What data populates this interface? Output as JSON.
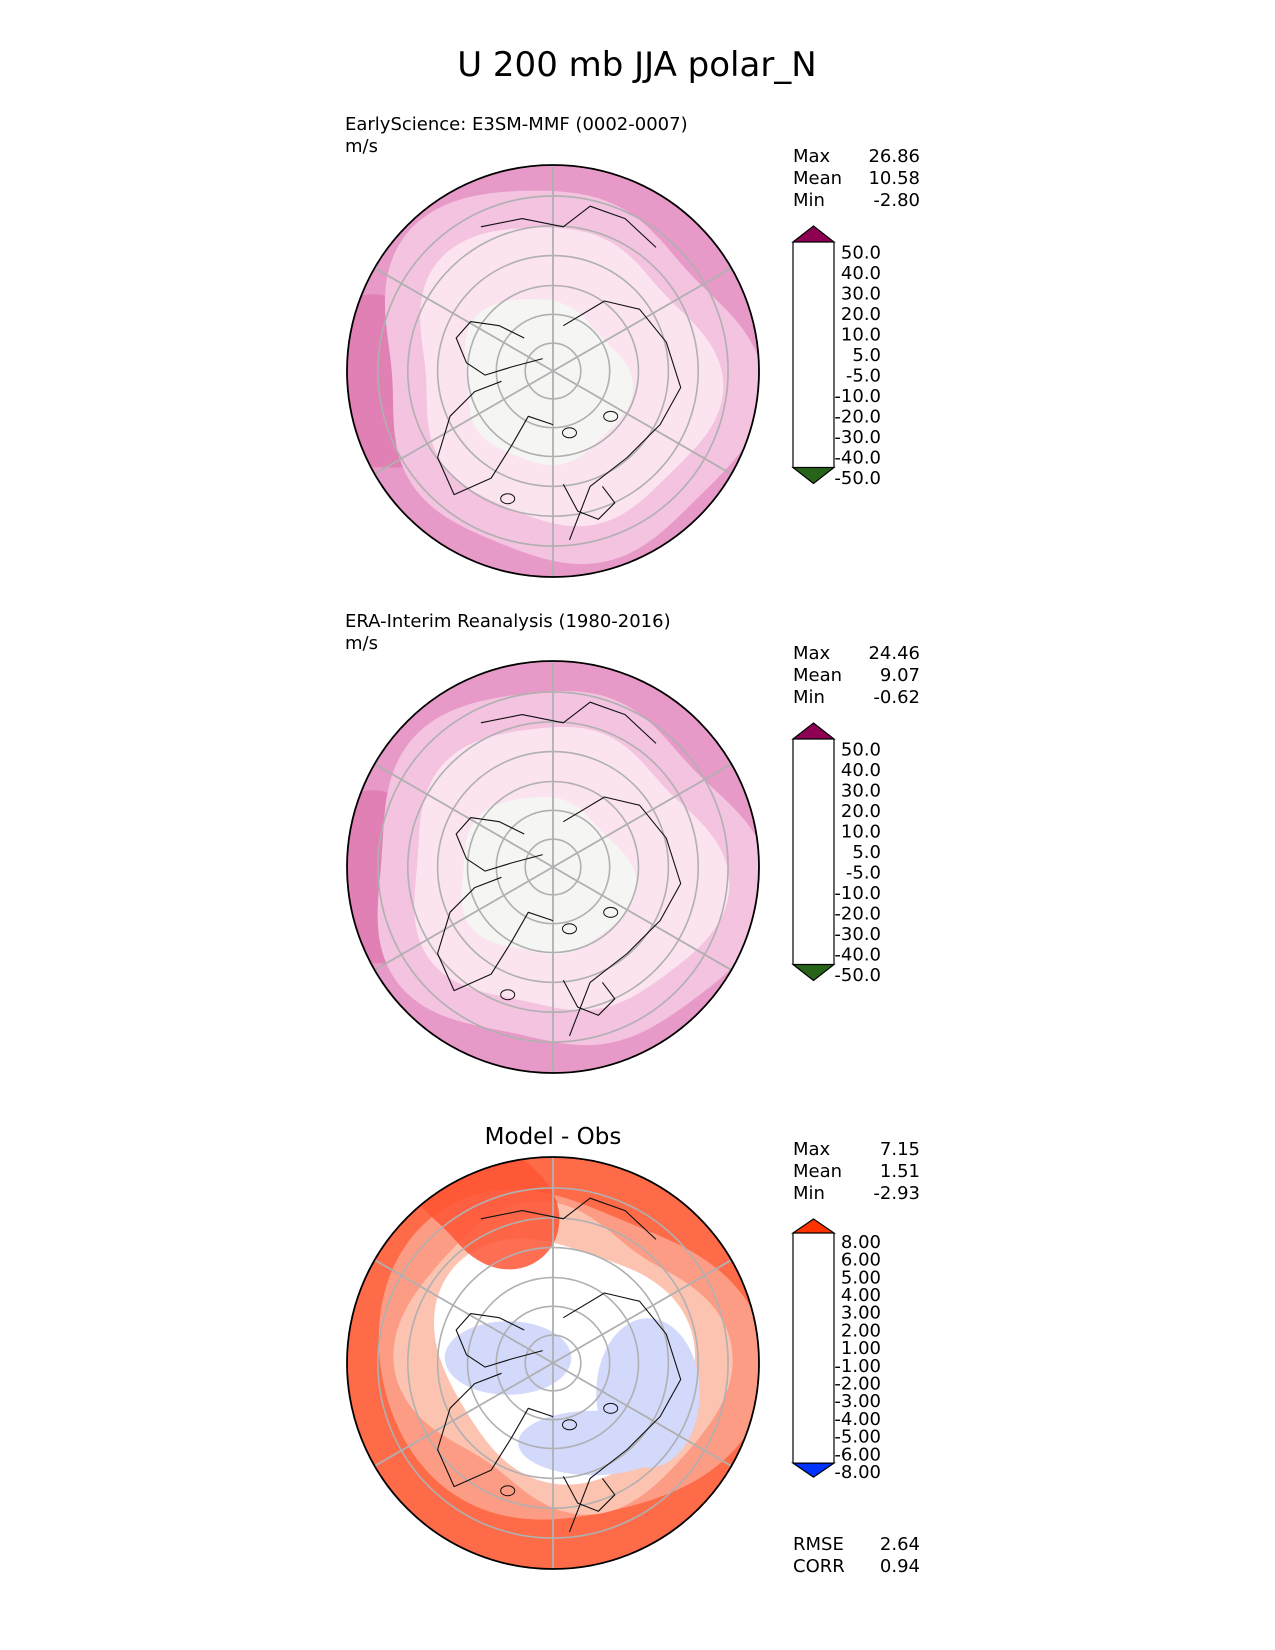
{
  "figure_title": "U 200 mb JJA polar_N",
  "chart_data": [
    {
      "type": "heatmap",
      "projection": "north-polar-stereographic",
      "title": "EarlyScience: E3SM-MMF (0002-0007)",
      "units": "m/s",
      "stats": [
        {
          "label": "Max",
          "value": "26.86"
        },
        {
          "label": "Mean",
          "value": "10.58"
        },
        {
          "label": "Min",
          "value": "-2.80"
        }
      ],
      "colorbar": {
        "labels": [
          "50.0",
          "40.0",
          "30.0",
          "20.0",
          "10.0",
          "5.0",
          "-5.0",
          "-10.0",
          "-20.0",
          "-30.0",
          "-40.0",
          "-50.0"
        ],
        "colors": [
          "#8e0152",
          "#c51b7d",
          "#de77ae",
          "#f1b6da",
          "#fde0ef",
          "#f7f7f7",
          "#e6f5d0",
          "#b8e186",
          "#7fbc41",
          "#4d9221",
          "#276419"
        ],
        "extend_top_color": "#8e0152",
        "extend_bottom_color": "#276419",
        "upper_colors": [
          "#8e0152",
          "#c51b7d",
          "#de77ae",
          "#f1b6da",
          "#fde0ef"
        ],
        "lower_colors": [
          "#e6f5d0",
          "#b8e186",
          "#7fbc41",
          "#4d9221",
          "#276419"
        ]
      },
      "field": {
        "rings": [
          {
            "value": 22,
            "color": "#e79ac8"
          },
          {
            "value": 15,
            "color": "#f3c3df"
          },
          {
            "value": 8,
            "color": "#fbe3ef"
          },
          {
            "value": 3,
            "color": "#f5f5f3"
          }
        ]
      }
    },
    {
      "type": "heatmap",
      "projection": "north-polar-stereographic",
      "title": "ERA-Interim Reanalysis (1980-2016)",
      "units": "m/s",
      "stats": [
        {
          "label": "Max",
          "value": "24.46"
        },
        {
          "label": "Mean",
          "value": "9.07"
        },
        {
          "label": "Min",
          "value": "-0.62"
        }
      ],
      "colorbar": {
        "labels": [
          "50.0",
          "40.0",
          "30.0",
          "20.0",
          "10.0",
          "5.0",
          "-5.0",
          "-10.0",
          "-20.0",
          "-30.0",
          "-40.0",
          "-50.0"
        ],
        "colors": [
          "#8e0152",
          "#c51b7d",
          "#de77ae",
          "#f1b6da",
          "#fde0ef",
          "#f7f7f7",
          "#e6f5d0",
          "#b8e186",
          "#7fbc41",
          "#4d9221",
          "#276419"
        ],
        "extend_top_color": "#8e0152",
        "extend_bottom_color": "#276419"
      },
      "field": {
        "rings": [
          {
            "value": 20,
            "color": "#e79ac8"
          },
          {
            "value": 13,
            "color": "#f3c3df"
          },
          {
            "value": 7,
            "color": "#fbe3ef"
          },
          {
            "value": 2,
            "color": "#f5f5f3"
          }
        ]
      }
    },
    {
      "type": "heatmap",
      "projection": "north-polar-stereographic",
      "title": "Model - Obs",
      "units": "",
      "stats": [
        {
          "label": "Max",
          "value": "7.15"
        },
        {
          "label": "Mean",
          "value": "1.51"
        },
        {
          "label": "Min",
          "value": "-2.93"
        }
      ],
      "extra_stats": [
        {
          "label": "RMSE",
          "value": "2.64"
        },
        {
          "label": "CORR",
          "value": "0.94"
        }
      ],
      "colorbar": {
        "labels": [
          "8.00",
          "6.00",
          "5.00",
          "4.00",
          "3.00",
          "2.00",
          "1.00",
          "-1.00",
          "-2.00",
          "-3.00",
          "-4.00",
          "-5.00",
          "-6.00",
          "-8.00"
        ],
        "colors": [
          "#fe2d10",
          "#fe5535",
          "#fe7d62",
          "#fd9c85",
          "#fdbaa6",
          "#fdd7cb",
          "#ffffff",
          "#dbe0fc",
          "#b7c3fa",
          "#96a6f8",
          "#7388f6",
          "#4f6bf4",
          "#2c4df2"
        ],
        "extend_top_color": "#ff3300",
        "extend_bottom_color": "#0033ff"
      },
      "field": {
        "rings": [
          {
            "value": 5,
            "color": "#fe6b48"
          },
          {
            "value": 3,
            "color": "#fd9c85"
          },
          {
            "value": 2,
            "color": "#fdc3b1"
          },
          {
            "value": 0,
            "color": "#ffffff"
          }
        ],
        "blobs": [
          {
            "value": -2,
            "color": "#b7c3fa"
          },
          {
            "value": -1.5,
            "color": "#d2d9fb"
          }
        ]
      }
    }
  ]
}
